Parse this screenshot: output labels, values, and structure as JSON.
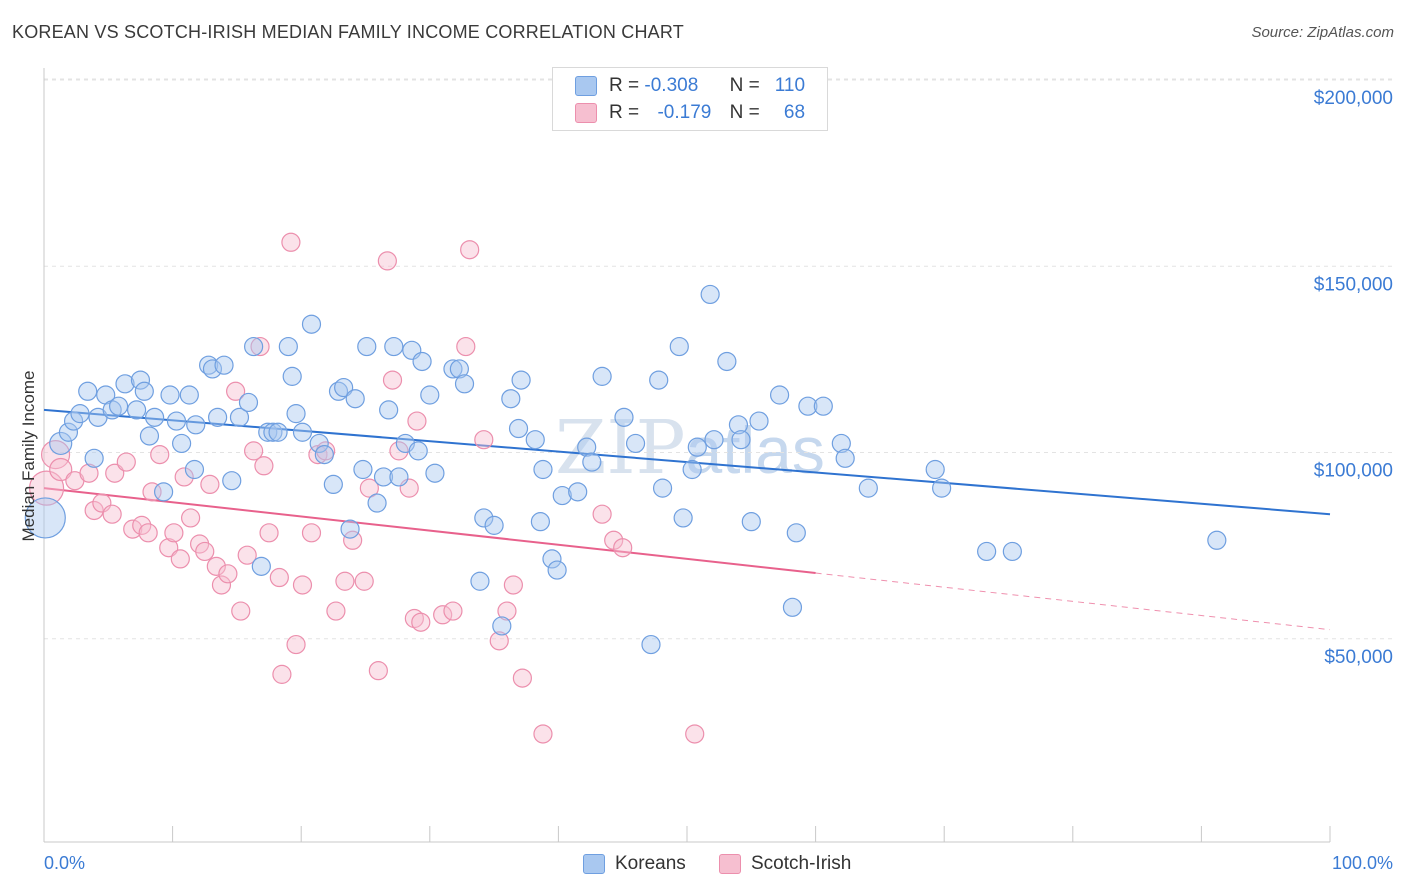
{
  "header": {
    "title": "KOREAN VS SCOTCH-IRISH MEDIAN FAMILY INCOME CORRELATION CHART",
    "source": "Source: ZipAtlas.com"
  },
  "watermark": {
    "zip": "ZIP",
    "atlas": "atlas"
  },
  "legend": {
    "koreans": {
      "r_label": "R =",
      "r_value": "-0.308",
      "n_label": "N =",
      "n_value": "110"
    },
    "scotch_irish": {
      "r_label": "R =",
      "r_value": "-0.179",
      "n_label": "N =",
      "n_value": "68"
    }
  },
  "colors": {
    "koreans_fill": "#a9c8f0",
    "koreans_stroke": "#6f9fe0",
    "koreans_line": "#2f73d0",
    "scotch_fill": "#f6bfd0",
    "scotch_stroke": "#ec8fad",
    "scotch_line": "#e8618c",
    "tick_text": "#3b7bd4",
    "grid": "#e3e3e3"
  },
  "chart_data": {
    "type": "scatter",
    "title": "KOREAN VS SCOTCH-IRISH MEDIAN FAMILY INCOME CORRELATION CHART",
    "xlabel": "",
    "ylabel": "Median Family Income",
    "xlim": [
      0,
      100
    ],
    "ylim": [
      0,
      215000
    ],
    "x_tick_labels": [
      "0.0%",
      "100.0%"
    ],
    "y_ticks": [
      50000,
      100000,
      150000,
      200000
    ],
    "y_tick_labels": [
      "$50,000",
      "$100,000",
      "$150,000",
      "$200,000"
    ],
    "grid": "horizontal dashed",
    "legend_position": "top-center",
    "series": [
      {
        "name": "Koreans",
        "r": -0.308,
        "n": 110,
        "trend": {
          "x": [
            0,
            100
          ],
          "y": [
            116000,
            88000
          ],
          "dashed_from": null
        },
        "points": [
          [
            0.1,
            87000,
            20
          ],
          [
            1.3,
            107000,
            11
          ],
          [
            1.9,
            110000,
            9
          ],
          [
            2.3,
            113000,
            9
          ],
          [
            2.8,
            115000,
            9
          ],
          [
            3.4,
            121000,
            9
          ],
          [
            3.9,
            103000,
            9
          ],
          [
            4.2,
            114000,
            9
          ],
          [
            4.8,
            120000,
            9
          ],
          [
            5.3,
            116000,
            9
          ],
          [
            5.8,
            117000,
            9
          ],
          [
            6.3,
            123000,
            9
          ],
          [
            7.2,
            116000,
            9
          ],
          [
            7.5,
            124000,
            9
          ],
          [
            7.8,
            121000,
            9
          ],
          [
            8.2,
            109000,
            9
          ],
          [
            8.6,
            114000,
            9
          ],
          [
            9.3,
            94000,
            9
          ],
          [
            9.8,
            120000,
            9
          ],
          [
            10.3,
            113000,
            9
          ],
          [
            10.7,
            107000,
            9
          ],
          [
            11.3,
            120000,
            9
          ],
          [
            11.8,
            112000,
            9
          ],
          [
            11.7,
            100000,
            9
          ],
          [
            12.8,
            128000,
            9
          ],
          [
            13.1,
            127000,
            9
          ],
          [
            13.5,
            114000,
            9
          ],
          [
            14.0,
            128000,
            9
          ],
          [
            14.6,
            97000,
            9
          ],
          [
            15.2,
            114000,
            9
          ],
          [
            15.9,
            118000,
            9
          ],
          [
            16.3,
            133000,
            9
          ],
          [
            16.9,
            74000,
            9
          ],
          [
            17.4,
            110000,
            9
          ],
          [
            17.8,
            110000,
            9
          ],
          [
            18.2,
            110000,
            9
          ],
          [
            19.0,
            133000,
            9
          ],
          [
            19.3,
            125000,
            9
          ],
          [
            19.6,
            115000,
            9
          ],
          [
            20.1,
            110000,
            9
          ],
          [
            20.8,
            139000,
            9
          ],
          [
            21.4,
            107000,
            9
          ],
          [
            21.8,
            104000,
            9
          ],
          [
            22.5,
            96000,
            9
          ],
          [
            22.9,
            121000,
            9
          ],
          [
            23.3,
            122000,
            9
          ],
          [
            23.8,
            84000,
            9
          ],
          [
            24.2,
            119000,
            9
          ],
          [
            24.8,
            100000,
            9
          ],
          [
            25.1,
            133000,
            9
          ],
          [
            25.9,
            91000,
            9
          ],
          [
            26.4,
            98000,
            9
          ],
          [
            26.8,
            116000,
            9
          ],
          [
            27.2,
            133000,
            9
          ],
          [
            27.6,
            98000,
            9
          ],
          [
            28.1,
            107000,
            9
          ],
          [
            28.6,
            132000,
            9
          ],
          [
            29.1,
            105000,
            9
          ],
          [
            29.4,
            129000,
            9
          ],
          [
            30.0,
            120000,
            9
          ],
          [
            30.4,
            99000,
            9
          ],
          [
            31.8,
            127000,
            9
          ],
          [
            32.3,
            127000,
            9
          ],
          [
            32.7,
            123000,
            9
          ],
          [
            33.9,
            70000,
            9
          ],
          [
            34.2,
            87000,
            9
          ],
          [
            35.0,
            85000,
            9
          ],
          [
            35.6,
            58000,
            9
          ],
          [
            36.3,
            119000,
            9
          ],
          [
            36.9,
            111000,
            9
          ],
          [
            37.1,
            124000,
            9
          ],
          [
            38.2,
            108000,
            9
          ],
          [
            38.6,
            86000,
            9
          ],
          [
            38.8,
            100000,
            9
          ],
          [
            39.5,
            76000,
            9
          ],
          [
            39.9,
            73000,
            9
          ],
          [
            40.3,
            93000,
            9
          ],
          [
            41.5,
            94000,
            9
          ],
          [
            42.2,
            106000,
            9
          ],
          [
            42.6,
            102000,
            9
          ],
          [
            43.4,
            125000,
            9
          ],
          [
            45.1,
            114000,
            9
          ],
          [
            46.0,
            107000,
            9
          ],
          [
            47.2,
            53000,
            9
          ],
          [
            47.8,
            124000,
            9
          ],
          [
            48.1,
            95000,
            9
          ],
          [
            49.4,
            133000,
            9
          ],
          [
            49.7,
            87000,
            9
          ],
          [
            50.4,
            100000,
            9
          ],
          [
            50.8,
            106000,
            9
          ],
          [
            52.1,
            108000,
            9
          ],
          [
            53.1,
            129000,
            9
          ],
          [
            54.0,
            112000,
            9
          ],
          [
            54.2,
            108000,
            9
          ],
          [
            55.0,
            86000,
            9
          ],
          [
            55.6,
            113000,
            9
          ],
          [
            57.2,
            120000,
            9
          ],
          [
            58.2,
            63000,
            9
          ],
          [
            58.5,
            83000,
            9
          ],
          [
            59.4,
            117000,
            9
          ],
          [
            60.6,
            117000,
            9
          ],
          [
            62.0,
            107000,
            9
          ],
          [
            62.3,
            103000,
            9
          ],
          [
            64.1,
            95000,
            9
          ],
          [
            69.8,
            95000,
            9
          ],
          [
            73.3,
            78000,
            9
          ],
          [
            75.3,
            78000,
            9
          ],
          [
            91.2,
            81000,
            9
          ],
          [
            69.3,
            100000,
            9
          ],
          [
            51.8,
            147000,
            9
          ]
        ]
      },
      {
        "name": "Scotch-Irish",
        "r": -0.179,
        "n": 68,
        "trend": {
          "x": [
            0,
            100
          ],
          "y": [
            95000,
            57000
          ],
          "dashed_from": 60
        },
        "points": [
          [
            0.2,
            95000,
            17
          ],
          [
            0.9,
            104000,
            14
          ],
          [
            1.3,
            100000,
            11
          ],
          [
            2.4,
            97000,
            9
          ],
          [
            3.5,
            99000,
            9
          ],
          [
            3.9,
            89000,
            9
          ],
          [
            4.5,
            91000,
            9
          ],
          [
            5.3,
            88000,
            9
          ],
          [
            5.5,
            99000,
            9
          ],
          [
            6.4,
            102000,
            9
          ],
          [
            6.9,
            84000,
            9
          ],
          [
            7.6,
            85000,
            9
          ],
          [
            8.1,
            83000,
            9
          ],
          [
            8.4,
            94000,
            9
          ],
          [
            9.0,
            104000,
            9
          ],
          [
            9.7,
            79000,
            9
          ],
          [
            10.1,
            83000,
            9
          ],
          [
            10.6,
            76000,
            9
          ],
          [
            10.9,
            98000,
            9
          ],
          [
            11.4,
            87000,
            9
          ],
          [
            12.1,
            80000,
            9
          ],
          [
            12.5,
            78000,
            9
          ],
          [
            12.9,
            96000,
            9
          ],
          [
            13.4,
            74000,
            9
          ],
          [
            13.8,
            69000,
            9
          ],
          [
            14.3,
            72000,
            9
          ],
          [
            14.9,
            121000,
            9
          ],
          [
            15.3,
            62000,
            9
          ],
          [
            15.8,
            77000,
            9
          ],
          [
            16.3,
            105000,
            9
          ],
          [
            16.8,
            133000,
            9
          ],
          [
            17.1,
            101000,
            9
          ],
          [
            17.5,
            83000,
            9
          ],
          [
            18.3,
            71000,
            9
          ],
          [
            18.5,
            45000,
            9
          ],
          [
            19.2,
            161000,
            9
          ],
          [
            19.6,
            53000,
            9
          ],
          [
            20.1,
            69000,
            9
          ],
          [
            20.8,
            83000,
            9
          ],
          [
            21.3,
            104000,
            9
          ],
          [
            21.9,
            105000,
            9
          ],
          [
            22.7,
            62000,
            9
          ],
          [
            23.4,
            70000,
            9
          ],
          [
            24.0,
            81000,
            9
          ],
          [
            24.9,
            70000,
            9
          ],
          [
            25.3,
            95000,
            9
          ],
          [
            26.0,
            46000,
            9
          ],
          [
            26.7,
            156000,
            9
          ],
          [
            27.6,
            105000,
            9
          ],
          [
            28.4,
            95000,
            9
          ],
          [
            28.8,
            60000,
            9
          ],
          [
            29.0,
            113000,
            9
          ],
          [
            29.3,
            59000,
            9
          ],
          [
            31.0,
            61000,
            9
          ],
          [
            31.8,
            62000,
            9
          ],
          [
            32.8,
            133000,
            9
          ],
          [
            33.1,
            159000,
            9
          ],
          [
            34.2,
            108000,
            9
          ],
          [
            35.4,
            54000,
            9
          ],
          [
            36.0,
            62000,
            9
          ],
          [
            36.5,
            69000,
            9
          ],
          [
            37.2,
            44000,
            9
          ],
          [
            38.8,
            29000,
            9
          ],
          [
            43.4,
            88000,
            9
          ],
          [
            44.3,
            81000,
            9
          ],
          [
            45.0,
            79000,
            9
          ],
          [
            50.6,
            29000,
            9
          ],
          [
            27.1,
            124000,
            9
          ]
        ]
      }
    ]
  },
  "bottom_legend": {
    "koreans": "Koreans",
    "scotch_irish": "Scotch-Irish"
  }
}
